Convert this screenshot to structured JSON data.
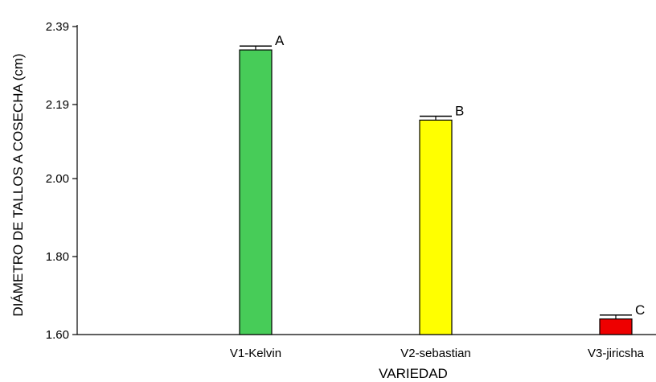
{
  "chart_data": {
    "type": "bar",
    "title": "",
    "xlabel": "VARIEDAD",
    "ylabel": "DIÁMETRO DE TALLOS A COSECHA (cm)",
    "ylim": [
      1.6,
      2.39
    ],
    "yticks": [
      "1.60",
      "1.80",
      "2.00",
      "2.19",
      "2.39"
    ],
    "categories": [
      "V1-Kelvin",
      "V2-sebastian",
      "V3-jiricsha"
    ],
    "values": [
      2.33,
      2.15,
      1.64
    ],
    "error": [
      0.01,
      0.01,
      0.01
    ],
    "significance": [
      "A",
      "B",
      "C"
    ],
    "colors": [
      "#47cc58",
      "#ffff00",
      "#ee0000"
    ],
    "grid": false,
    "legend": "none"
  }
}
